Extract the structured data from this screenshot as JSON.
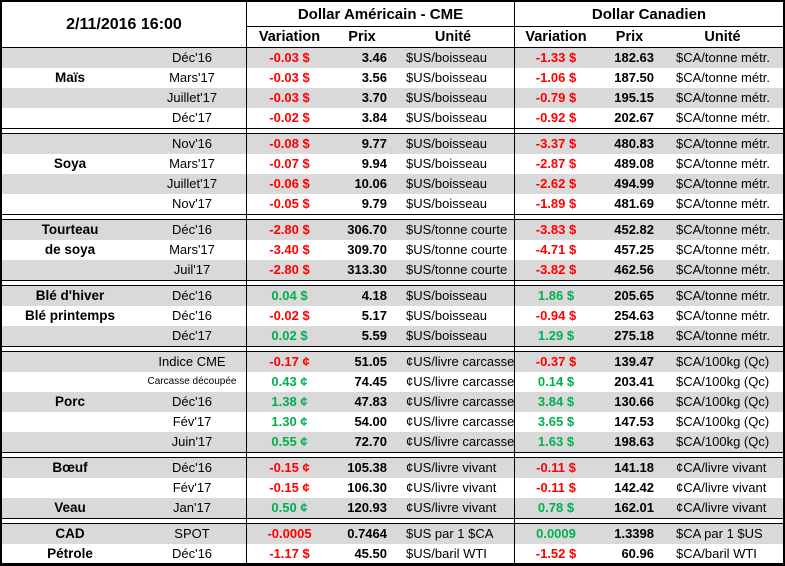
{
  "theme": {
    "negative_color": "#ff0000",
    "positive_color": "#00b050",
    "row_shade_color": "#d9d9d9",
    "border_color": "#000000"
  },
  "table": {
    "date": "2/11/2016 16:00",
    "us_section_title": "Dollar Américain - CME",
    "ca_section_title": "Dollar Canadien",
    "subheaders": [
      "Variation",
      "Prix",
      "Unité",
      "Variation",
      "Prix",
      "Unité"
    ],
    "groups": [
      {
        "name": "Maïs",
        "rows": [
          {
            "label": "",
            "contract": "Déc'16",
            "us": [
              "-0.03 $",
              "3.46",
              "$US/boisseau"
            ],
            "ca": [
              "-1.33 $",
              "182.63",
              "$CA/tonne métr."
            ]
          },
          {
            "label": "Maïs",
            "contract": "Mars'17",
            "us": [
              "-0.03 $",
              "3.56",
              "$US/boisseau"
            ],
            "ca": [
              "-1.06 $",
              "187.50",
              "$CA/tonne métr."
            ]
          },
          {
            "label": "",
            "contract": "Juillet'17",
            "us": [
              "-0.03 $",
              "3.70",
              "$US/boisseau"
            ],
            "ca": [
              "-0.79 $",
              "195.15",
              "$CA/tonne métr."
            ]
          },
          {
            "label": "",
            "contract": "Déc'17",
            "us": [
              "-0.02 $",
              "3.84",
              "$US/boisseau"
            ],
            "ca": [
              "-0.92 $",
              "202.67",
              "$CA/tonne métr."
            ]
          }
        ]
      },
      {
        "name": "Soya",
        "rows": [
          {
            "label": "",
            "contract": "Nov'16",
            "us": [
              "-0.08 $",
              "9.77",
              "$US/boisseau"
            ],
            "ca": [
              "-3.37 $",
              "480.83",
              "$CA/tonne métr."
            ]
          },
          {
            "label": "Soya",
            "contract": "Mars'17",
            "us": [
              "-0.07 $",
              "9.94",
              "$US/boisseau"
            ],
            "ca": [
              "-2.87 $",
              "489.08",
              "$CA/tonne métr."
            ]
          },
          {
            "label": "",
            "contract": "Juillet'17",
            "us": [
              "-0.06 $",
              "10.06",
              "$US/boisseau"
            ],
            "ca": [
              "-2.62 $",
              "494.99",
              "$CA/tonne métr."
            ]
          },
          {
            "label": "",
            "contract": "Nov'17",
            "us": [
              "-0.05 $",
              "9.79",
              "$US/boisseau"
            ],
            "ca": [
              "-1.89 $",
              "481.69",
              "$CA/tonne métr."
            ]
          }
        ]
      },
      {
        "name": "Tourteau de soya",
        "rows": [
          {
            "label": "Tourteau",
            "contract": "Déc'16",
            "us": [
              "-2.80 $",
              "306.70",
              "$US/tonne courte"
            ],
            "ca": [
              "-3.83 $",
              "452.82",
              "$CA/tonne métr."
            ]
          },
          {
            "label": "de soya",
            "contract": "Mars'17",
            "us": [
              "-3.40 $",
              "309.70",
              "$US/tonne courte"
            ],
            "ca": [
              "-4.71 $",
              "457.25",
              "$CA/tonne métr."
            ]
          },
          {
            "label": "",
            "contract": "Juil'17",
            "us": [
              "-2.80 $",
              "313.30",
              "$US/tonne courte"
            ],
            "ca": [
              "-3.82 $",
              "462.56",
              "$CA/tonne métr."
            ]
          }
        ]
      },
      {
        "name": "Blé",
        "rows": [
          {
            "label": "Blé d'hiver",
            "contract": "Déc'16",
            "us": [
              "0.04 $",
              "4.18",
              "$US/boisseau"
            ],
            "ca": [
              "1.86 $",
              "205.65",
              "$CA/tonne métr."
            ]
          },
          {
            "label": "Blé printemps",
            "contract": "Déc'16",
            "us": [
              "-0.02 $",
              "5.17",
              "$US/boisseau"
            ],
            "ca": [
              "-0.94 $",
              "254.63",
              "$CA/tonne métr."
            ]
          },
          {
            "label": "",
            "contract": "Déc'17",
            "us": [
              "0.02 $",
              "5.59",
              "$US/boisseau"
            ],
            "ca": [
              "1.29 $",
              "275.18",
              "$CA/tonne métr."
            ]
          }
        ]
      },
      {
        "name": "Porc",
        "rows": [
          {
            "label": "",
            "contract": "Indice CME",
            "us": [
              "-0.17 ¢",
              "51.05",
              "¢US/livre carcasse"
            ],
            "ca": [
              "-0.37 $",
              "139.47",
              "$CA/100kg (Qc)"
            ]
          },
          {
            "label": "",
            "contract": "Carcasse découpée",
            "us": [
              "0.43 ¢",
              "74.45",
              "¢US/livre carcasse"
            ],
            "ca": [
              "0.14 $",
              "203.41",
              "$CA/100kg (Qc)"
            ]
          },
          {
            "label": "Porc",
            "contract": "Déc'16",
            "us": [
              "1.38 ¢",
              "47.83",
              "¢US/livre carcasse"
            ],
            "ca": [
              "3.84 $",
              "130.66",
              "$CA/100kg (Qc)"
            ]
          },
          {
            "label": "",
            "contract": "Fév'17",
            "us": [
              "1.30 ¢",
              "54.00",
              "¢US/livre carcasse"
            ],
            "ca": [
              "3.65 $",
              "147.53",
              "$CA/100kg (Qc)"
            ]
          },
          {
            "label": "",
            "contract": "Juin'17",
            "us": [
              "0.55 ¢",
              "72.70",
              "¢US/livre carcasse"
            ],
            "ca": [
              "1.63 $",
              "198.63",
              "$CA/100kg (Qc)"
            ]
          }
        ]
      },
      {
        "name": "Bœuf / Veau",
        "rows": [
          {
            "label": "Bœuf",
            "contract": "Déc'16",
            "us": [
              "-0.15 ¢",
              "105.38",
              "¢US/livre vivant"
            ],
            "ca": [
              "-0.11 $",
              "141.18",
              "¢CA/livre vivant"
            ]
          },
          {
            "label": "",
            "contract": "Fév'17",
            "us": [
              "-0.15 ¢",
              "106.30",
              "¢US/livre vivant"
            ],
            "ca": [
              "-0.11 $",
              "142.42",
              "¢CA/livre vivant"
            ]
          },
          {
            "label": "Veau",
            "contract": "Jan'17",
            "us": [
              "0.50 ¢",
              "120.93",
              "¢US/livre vivant"
            ],
            "ca": [
              "0.78 $",
              "162.01",
              "¢CA/livre vivant"
            ]
          }
        ]
      },
      {
        "name": "CAD / Pétrole",
        "rows": [
          {
            "label": "CAD",
            "contract": "SPOT",
            "us": [
              "-0.0005",
              "0.7464",
              "$US par 1 $CA"
            ],
            "ca": [
              "0.0009",
              "1.3398",
              "$CA par 1 $US"
            ]
          },
          {
            "label": "Pétrole",
            "contract": "Déc'16",
            "us": [
              "-1.17 $",
              "45.50",
              "$US/baril WTI"
            ],
            "ca": [
              "-1.52 $",
              "60.96",
              "$CA/baril WTI"
            ]
          }
        ]
      }
    ]
  }
}
